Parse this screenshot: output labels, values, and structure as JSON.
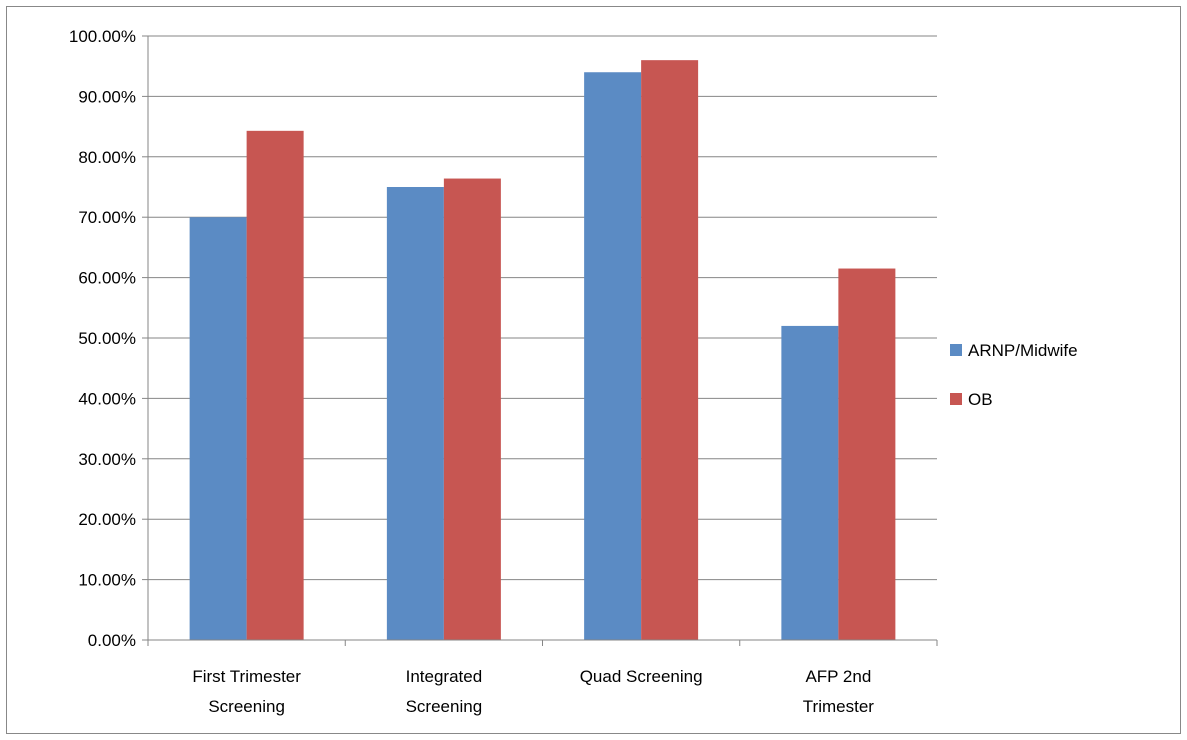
{
  "chart_data": {
    "type": "bar",
    "categories": [
      [
        "First Trimester",
        "Screening"
      ],
      [
        "Integrated",
        "Screening"
      ],
      [
        "Quad Screening"
      ],
      [
        "AFP 2nd",
        "Trimester"
      ]
    ],
    "series": [
      {
        "name": "ARNP/Midwife",
        "color": "#5B8BC4",
        "values": [
          70.0,
          75.0,
          94.0,
          52.0
        ]
      },
      {
        "name": "OB",
        "color": "#C75652",
        "values": [
          84.3,
          76.4,
          96.0,
          61.5
        ]
      }
    ],
    "y_tick_labels": [
      "0.00%",
      "10.00%",
      "20.00%",
      "30.00%",
      "40.00%",
      "50.00%",
      "60.00%",
      "70.00%",
      "80.00%",
      "90.00%",
      "100.00%"
    ],
    "ylim": [
      0,
      100
    ],
    "ytick_step": 10,
    "grid": true,
    "legend_position": "right",
    "title": "",
    "xlabel": "",
    "ylabel": ""
  }
}
